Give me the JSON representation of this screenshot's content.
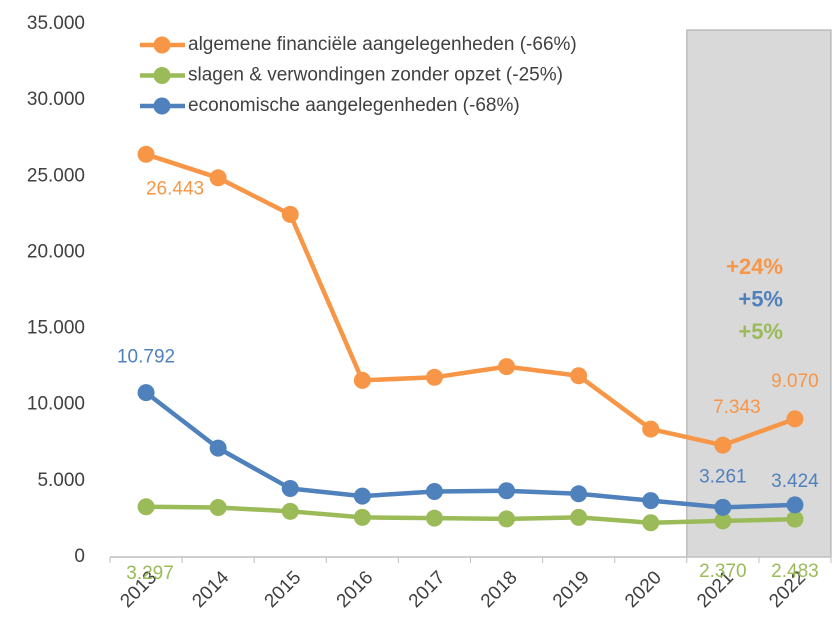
{
  "chart_data": {
    "type": "line",
    "categories": [
      "2013",
      "2014",
      "2015",
      "2016",
      "2017",
      "2018",
      "2019",
      "2020",
      "2021",
      "2022"
    ],
    "series": [
      {
        "name": "algemene financiële aangelegenheden (-66%)",
        "color": "#f79646",
        "values": [
          26443,
          24900,
          22500,
          11600,
          11800,
          12500,
          11900,
          8400,
          7343,
          9070
        ],
        "value_labels": [
          "26.443",
          null,
          null,
          null,
          null,
          null,
          null,
          null,
          "7.343",
          "9.070"
        ]
      },
      {
        "name": "slagen & verwondingen zonder opzet (-25%)",
        "color": "#9bbb59",
        "values": [
          3297,
          3250,
          3000,
          2600,
          2550,
          2500,
          2600,
          2250,
          2370,
          2483
        ],
        "value_labels": [
          "3.297",
          null,
          null,
          null,
          null,
          null,
          null,
          null,
          "2.370",
          "2.483"
        ]
      },
      {
        "name": "economische aangelegenheden (-68%)",
        "color": "#4f81bd",
        "values": [
          10792,
          7150,
          4500,
          4000,
          4300,
          4350,
          4150,
          3700,
          3261,
          3424
        ],
        "value_labels": [
          "10.792",
          null,
          null,
          null,
          null,
          null,
          null,
          null,
          "3.261",
          "3.424"
        ]
      }
    ],
    "ylim": [
      0,
      35000
    ],
    "yticks": [
      0,
      {
        "value": 5000,
        "label": "5.000"
      },
      {
        "value": 10000,
        "label": "10.000"
      },
      {
        "value": 15000,
        "label": "15.000"
      },
      {
        "value": 20000,
        "label": "20.000"
      },
      {
        "value": 25000,
        "label": "25.000"
      },
      {
        "value": 30000,
        "label": "30.000"
      },
      {
        "value": 35000,
        "label": "35.000"
      }
    ],
    "grid": false,
    "legend": "top-left",
    "annotations": [
      {
        "text": "+24%",
        "color": "#f79646"
      },
      {
        "text": "+5%",
        "color": "#4f81bd"
      },
      {
        "text": "+5%",
        "color": "#9bbb59"
      }
    ]
  }
}
